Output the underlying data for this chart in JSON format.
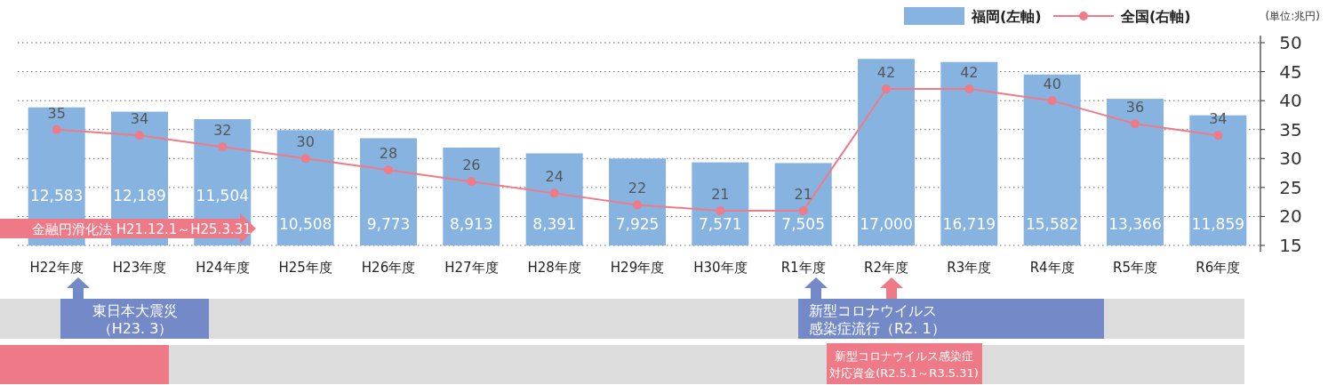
{
  "chart_data": {
    "type": "bar",
    "categories": [
      "H22年度",
      "H23年度",
      "H24年度",
      "H25年度",
      "H26年度",
      "H27年度",
      "H28年度",
      "H29年度",
      "H30年度",
      "R1年度",
      "R2年度",
      "R3年度",
      "R4年度",
      "R5年度",
      "R6年度"
    ],
    "series": [
      {
        "name": "福岡(左軸)",
        "color": "#86b3e0",
        "values": [
          12583,
          12189,
          11504,
          10508,
          9773,
          8913,
          8391,
          7925,
          7571,
          7505,
          17000,
          16719,
          15582,
          13366,
          11859
        ],
        "value_labels": [
          "12,583",
          "12,189",
          "11,504",
          "10,508",
          "9,773",
          "8,913",
          "8,391",
          "7,925",
          "7,571",
          "7,505",
          "17,000",
          "16,719",
          "15,582",
          "13,366",
          "11,859"
        ]
      },
      {
        "name": "全国(右軸)",
        "type": "line",
        "axis": "y2",
        "color": "#ee7b87",
        "values": [
          35,
          34,
          32,
          30,
          28,
          26,
          24,
          22,
          21,
          21,
          42,
          42,
          40,
          36,
          34
        ]
      }
    ],
    "y2lim": [
      15,
      50
    ],
    "y2ticks": [
      15,
      20,
      25,
      30,
      35,
      40,
      45,
      50
    ],
    "grid": "y",
    "legend": "top right",
    "marker": "circle",
    "data_labels": true,
    "annotations": [
      "(単位:兆円)",
      "金融円滑化法 H21.12.1～H25.3.31",
      "東日本大震災",
      "（H23. 3）",
      "新型コロナウイルス",
      "感染症流行（R2. 1）",
      "新型コロナウイルス感染症",
      "対応資金(R2.5.1～R3.5.31)"
    ]
  }
}
